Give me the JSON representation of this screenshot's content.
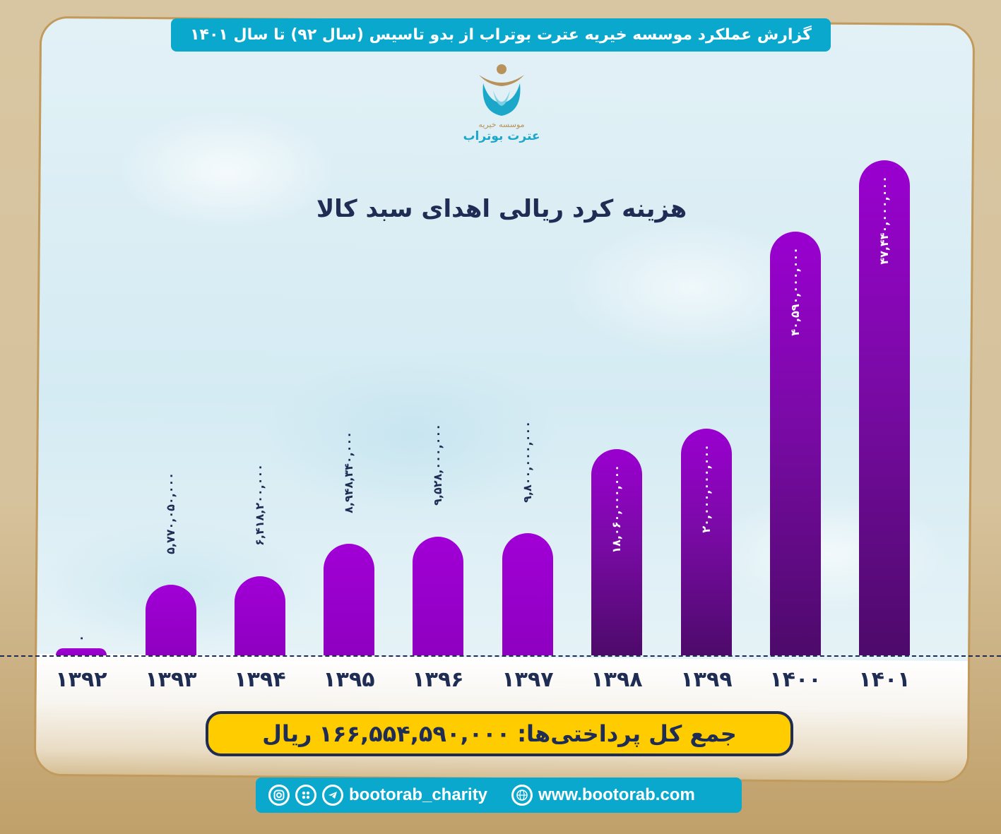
{
  "header": {
    "title": "گزارش عملکرد موسسه خیریه عترت بوتراب از بدو تاسیس (سال ۹۲) تا سال ۱۴۰۱"
  },
  "logo": {
    "subtitle": "موسسه خیریه",
    "name": "عترت بوتراب",
    "colors": {
      "gold": "#b8925a",
      "teal": "#1ba7c9"
    }
  },
  "chart_data": {
    "type": "bar",
    "title": "هزینه کرد ریالی اهدای سبد کالا",
    "xlabel": "",
    "ylabel": "ریال",
    "categories": [
      "۱۳۹۲",
      "۱۳۹۳",
      "۱۳۹۴",
      "۱۳۹۵",
      "۱۳۹۶",
      "۱۳۹۷",
      "۱۳۹۸",
      "۱۳۹۹",
      "۱۴۰۰",
      "۱۴۰۱"
    ],
    "values": [
      0,
      5770050000,
      6418200000,
      8948340000,
      9528000000,
      9800000000,
      18060000000,
      20000000000,
      40590000000,
      47440000000
    ],
    "value_labels": [
      "۰",
      "۵,۷۷۰,۰۵۰,۰۰۰",
      "۶,۴۱۸,۲۰۰,۰۰۰",
      "۸,۹۴۸,۳۴۰,۰۰۰",
      "۹,۵۲۸,۰۰۰,۰۰۰",
      "۹,۸۰۰,۰۰۰,۰۰۰",
      "۱۸,۰۶۰,۰۰۰,۰۰۰",
      "۲۰,۰۰۰,۰۰۰,۰۰۰",
      "۴۰,۵۹۰,۰۰۰,۰۰۰",
      "۴۷,۴۴۰,۰۰۰,۰۰۰"
    ],
    "grid": false,
    "legend": "none",
    "bar_color": "#9a00d0"
  },
  "total": {
    "label": "جمع کل پرداختی‌ها:",
    "value": "۱۶۶,۵۵۴,۵۹۰,۰۰۰",
    "unit": "ریال"
  },
  "footer": {
    "icons": [
      "instagram-icon",
      "aparat-icon",
      "telegram-icon"
    ],
    "social_handle": "bootorab_charity",
    "website": "www.bootorab.com"
  }
}
